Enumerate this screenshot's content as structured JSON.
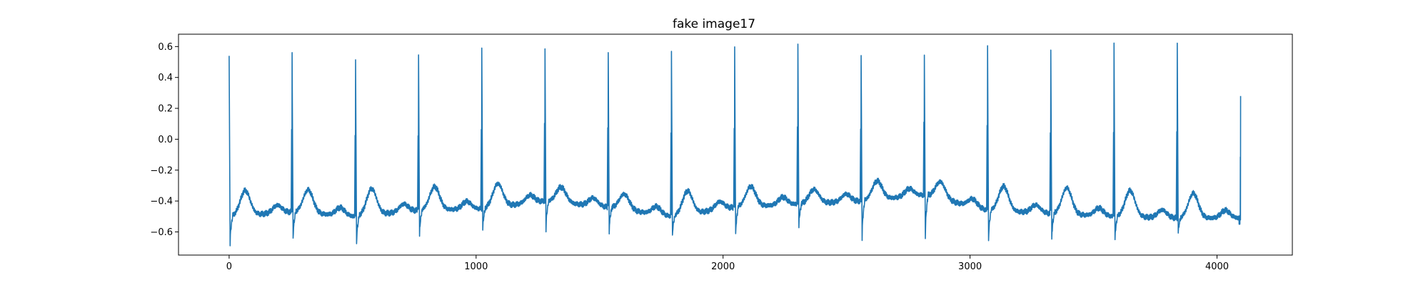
{
  "chart_data": {
    "type": "line",
    "title": "fake image17",
    "xlabel": "",
    "ylabel": "",
    "xlim": [
      -205,
      4305
    ],
    "ylim": [
      -0.75,
      0.68
    ],
    "xticks": [
      0,
      1000,
      2000,
      3000,
      4000
    ],
    "xtick_labels": [
      "0",
      "1000",
      "2000",
      "3000",
      "4000"
    ],
    "yticks": [
      -0.6,
      -0.4,
      -0.2,
      0.0,
      0.2,
      0.4,
      0.6
    ],
    "ytick_labels": [
      "−0.6",
      "−0.4",
      "−0.2",
      "0.0",
      "0.2",
      "0.4",
      "0.6"
    ],
    "grid": false,
    "legend": "none",
    "series": [
      {
        "color": "#1f77b4",
        "x_end": 4095,
        "end_value": 0.28,
        "peaks": [
          {
            "x": 0,
            "r": 0.54,
            "s": -0.68,
            "t": -0.34,
            "base": -0.5
          },
          {
            "x": 255,
            "r": 0.56,
            "s": -0.65,
            "t": -0.32,
            "base": -0.47
          },
          {
            "x": 512,
            "r": 0.52,
            "s": -0.68,
            "t": -0.33,
            "base": -0.5
          },
          {
            "x": 767,
            "r": 0.54,
            "s": -0.63,
            "t": -0.31,
            "base": -0.46
          },
          {
            "x": 1023,
            "r": 0.58,
            "s": -0.59,
            "t": -0.3,
            "base": -0.45
          },
          {
            "x": 1279,
            "r": 0.59,
            "s": -0.59,
            "t": -0.3,
            "base": -0.4
          },
          {
            "x": 1535,
            "r": 0.58,
            "s": -0.6,
            "t": -0.34,
            "base": -0.44
          },
          {
            "x": 1791,
            "r": 0.57,
            "s": -0.63,
            "t": -0.35,
            "base": -0.5
          },
          {
            "x": 2047,
            "r": 0.58,
            "s": -0.63,
            "t": -0.31,
            "base": -0.44
          },
          {
            "x": 2303,
            "r": 0.61,
            "s": -0.57,
            "t": -0.33,
            "base": -0.42
          },
          {
            "x": 2559,
            "r": 0.55,
            "s": -0.64,
            "t": -0.28,
            "base": -0.4
          },
          {
            "x": 2815,
            "r": 0.55,
            "s": -0.64,
            "t": -0.25,
            "base": -0.36
          },
          {
            "x": 3071,
            "r": 0.61,
            "s": -0.66,
            "t": -0.3,
            "base": -0.46
          },
          {
            "x": 3327,
            "r": 0.58,
            "s": -0.65,
            "t": -0.31,
            "base": -0.48
          },
          {
            "x": 3583,
            "r": 0.61,
            "s": -0.66,
            "t": -0.33,
            "base": -0.5
          },
          {
            "x": 3839,
            "r": 0.61,
            "s": -0.61,
            "t": -0.35,
            "base": -0.51
          }
        ]
      }
    ]
  }
}
